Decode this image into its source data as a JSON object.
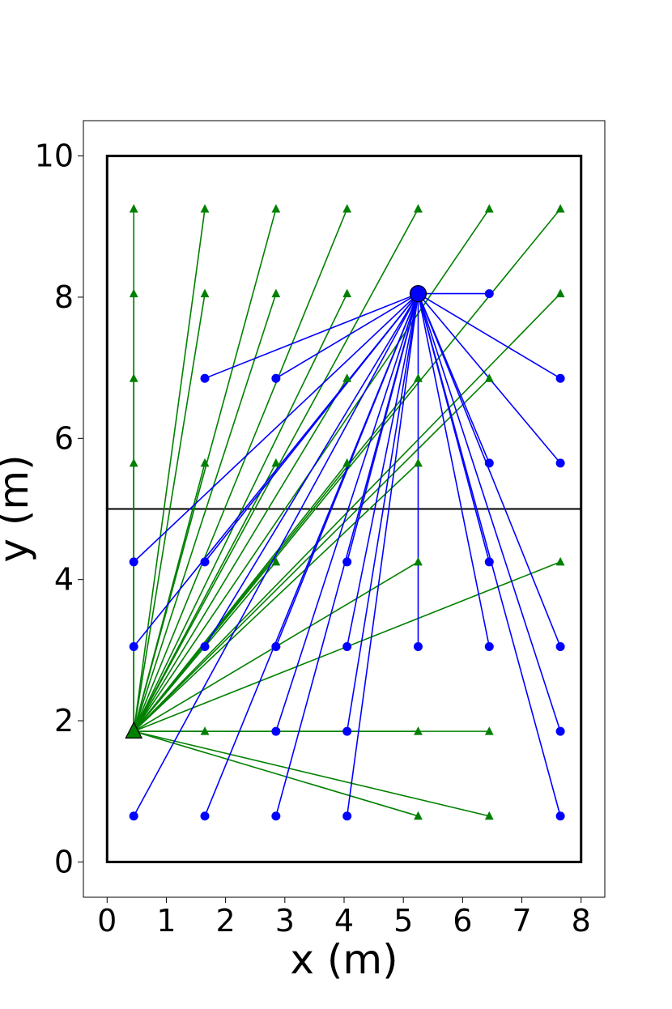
{
  "chart_data": {
    "type": "scatter",
    "title": "",
    "xlabel": "x (m)",
    "ylabel": "y (m)",
    "xlim": [
      -0.4,
      8.4
    ],
    "ylim": [
      -0.5,
      10.5
    ],
    "xticks": [
      0,
      1,
      2,
      3,
      4,
      5,
      6,
      7,
      8
    ],
    "yticks": [
      0,
      2,
      4,
      6,
      8,
      10
    ],
    "grid": false,
    "legend": "none",
    "room_outline": {
      "x": [
        0,
        8
      ],
      "y": [
        0,
        10
      ]
    },
    "wall_line": {
      "y": 5,
      "x": [
        0,
        8
      ]
    },
    "colors": {
      "green": "#008000",
      "blue": "#0000ff",
      "outline": "#000000"
    },
    "series": [
      {
        "marker": "triangle",
        "color": "#008000",
        "hub": {
          "x": 0.45,
          "y": 1.85
        },
        "points": [
          {
            "x": 0.45,
            "y": 9.25
          },
          {
            "x": 1.65,
            "y": 9.25
          },
          {
            "x": 2.85,
            "y": 9.25
          },
          {
            "x": 4.05,
            "y": 9.25
          },
          {
            "x": 5.25,
            "y": 9.25
          },
          {
            "x": 6.45,
            "y": 9.25
          },
          {
            "x": 7.65,
            "y": 9.25
          },
          {
            "x": 0.45,
            "y": 8.05
          },
          {
            "x": 1.65,
            "y": 8.05
          },
          {
            "x": 2.85,
            "y": 8.05
          },
          {
            "x": 4.05,
            "y": 8.05
          },
          {
            "x": 7.65,
            "y": 8.05
          },
          {
            "x": 0.45,
            "y": 6.85
          },
          {
            "x": 4.05,
            "y": 6.85
          },
          {
            "x": 5.25,
            "y": 6.85
          },
          {
            "x": 6.45,
            "y": 6.85
          },
          {
            "x": 0.45,
            "y": 5.65
          },
          {
            "x": 1.65,
            "y": 5.65
          },
          {
            "x": 2.85,
            "y": 5.65
          },
          {
            "x": 4.05,
            "y": 5.65
          },
          {
            "x": 5.25,
            "y": 5.65
          },
          {
            "x": 2.85,
            "y": 4.25
          },
          {
            "x": 5.25,
            "y": 4.25
          },
          {
            "x": 7.65,
            "y": 4.25
          },
          {
            "x": 1.65,
            "y": 1.85
          },
          {
            "x": 5.25,
            "y": 1.85
          },
          {
            "x": 6.45,
            "y": 1.85
          },
          {
            "x": 5.25,
            "y": 0.65
          },
          {
            "x": 6.45,
            "y": 0.65
          }
        ]
      },
      {
        "marker": "circle",
        "color": "#0000ff",
        "hub": {
          "x": 5.25,
          "y": 8.05
        },
        "points": [
          {
            "x": 6.45,
            "y": 8.05
          },
          {
            "x": 1.65,
            "y": 6.85
          },
          {
            "x": 2.85,
            "y": 6.85
          },
          {
            "x": 7.65,
            "y": 6.85
          },
          {
            "x": 6.45,
            "y": 5.65
          },
          {
            "x": 7.65,
            "y": 5.65
          },
          {
            "x": 0.45,
            "y": 4.25
          },
          {
            "x": 1.65,
            "y": 4.25
          },
          {
            "x": 4.05,
            "y": 4.25
          },
          {
            "x": 6.45,
            "y": 4.25
          },
          {
            "x": 0.45,
            "y": 3.05
          },
          {
            "x": 1.65,
            "y": 3.05
          },
          {
            "x": 2.85,
            "y": 3.05
          },
          {
            "x": 4.05,
            "y": 3.05
          },
          {
            "x": 5.25,
            "y": 3.05
          },
          {
            "x": 6.45,
            "y": 3.05
          },
          {
            "x": 7.65,
            "y": 3.05
          },
          {
            "x": 2.85,
            "y": 1.85
          },
          {
            "x": 4.05,
            "y": 1.85
          },
          {
            "x": 7.65,
            "y": 1.85
          },
          {
            "x": 0.45,
            "y": 0.65
          },
          {
            "x": 1.65,
            "y": 0.65
          },
          {
            "x": 2.85,
            "y": 0.65
          },
          {
            "x": 4.05,
            "y": 0.65
          },
          {
            "x": 7.65,
            "y": 0.65
          }
        ]
      }
    ]
  }
}
